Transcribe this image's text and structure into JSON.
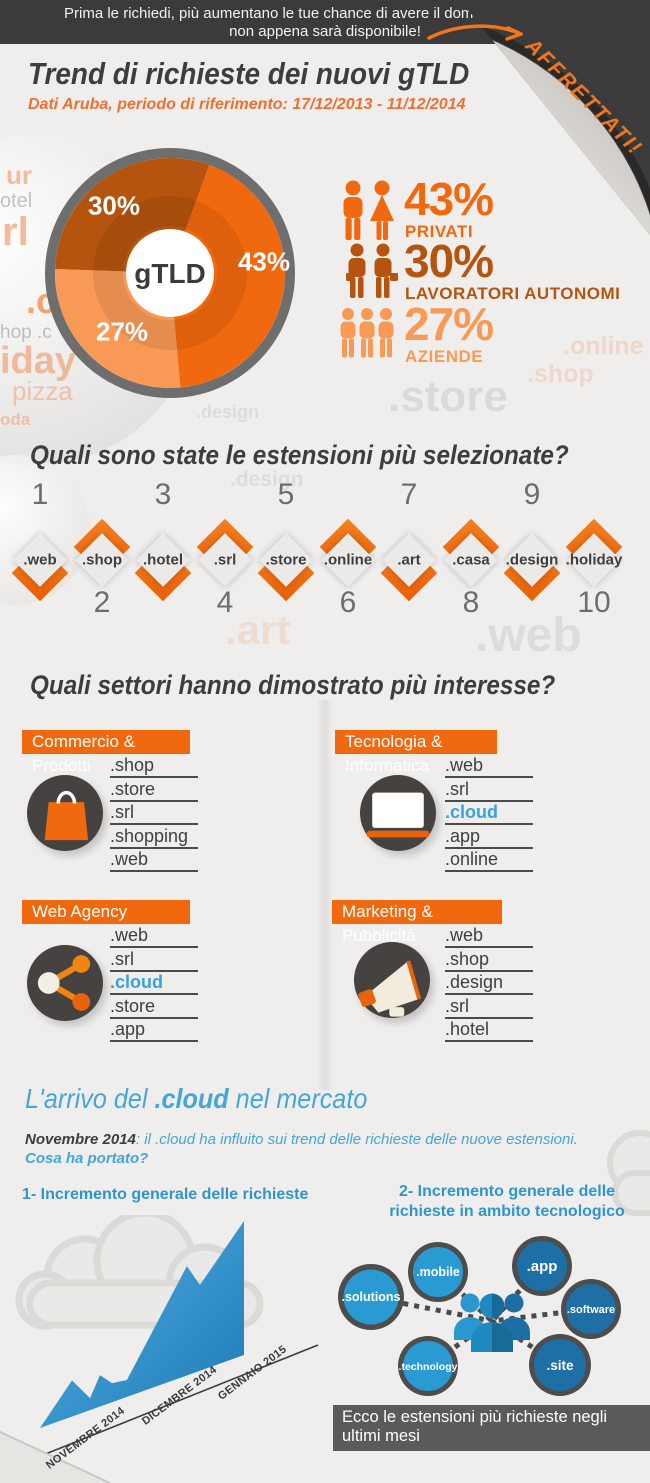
{
  "banner": {
    "line1": "Prima le richiedi, più aumentano le tue chance di avere il dominio che desideri,",
    "line2": "non appena sarà disponibile!",
    "ribbon": "AFFRETTATI!"
  },
  "header": {
    "title": "Trend di richieste dei nuovi gTLD",
    "subtitle": "Dati Aruba, periodo di riferimento: 17/12/2013 - 11/12/2014"
  },
  "audience": {
    "rows": [
      {
        "value": "43%",
        "label": "PRIVATI",
        "color": "#f1690e"
      },
      {
        "value": "30%",
        "label": "LAVORATORI AUTONOMI",
        "color": "#b5540e"
      },
      {
        "value": "27%",
        "label": "AZIENDE",
        "color": "#f89a55"
      }
    ]
  },
  "extensions_section": {
    "title": "Quali sono state le estensioni più selezionate?",
    "items": [
      {
        "rank": "1",
        "ext": ".web"
      },
      {
        "rank": "2",
        "ext": ".shop"
      },
      {
        "rank": "3",
        "ext": ".hotel"
      },
      {
        "rank": "4",
        "ext": ".srl"
      },
      {
        "rank": "5",
        "ext": ".store"
      },
      {
        "rank": "6",
        "ext": ".online"
      },
      {
        "rank": "7",
        "ext": ".art"
      },
      {
        "rank": "8",
        "ext": ".casa"
      },
      {
        "rank": "9",
        "ext": ".design"
      },
      {
        "rank": "10",
        "ext": ".holiday"
      }
    ]
  },
  "sectors_section": {
    "title": "Quali settori hanno dimostrato più interesse?",
    "cards": [
      {
        "title": "Commercio & Prodotti",
        "icon": "shopping-bag-icon",
        "items": [
          ".shop",
          ".store",
          ".srl",
          ".shopping",
          ".web"
        ]
      },
      {
        "title": "Tecnologia & Informatica",
        "icon": "laptop-icon",
        "items": [
          ".web",
          ".srl",
          ".cloud",
          ".app",
          ".online"
        ]
      },
      {
        "title": "Web Agency",
        "icon": "share-icon",
        "items": [
          ".web",
          ".srl",
          ".cloud",
          ".store",
          ".app"
        ]
      },
      {
        "title": "Marketing & Pubblicità",
        "icon": "megaphone-icon",
        "items": [
          ".web",
          ".shop",
          ".design",
          ".srl",
          ".hotel"
        ]
      }
    ]
  },
  "cloud_section": {
    "title_pre": "L'arrivo del ",
    "title_cloud": ".cloud",
    "title_post": " nel mercato",
    "intro_bold": "Novembre 2014",
    "intro_rest": ": il .cloud ha influito sui trend delle richieste delle nuove estensioni.",
    "intro_question": "Cosa ha portato?",
    "point1": "1- Incremento generale delle richieste",
    "point2_line1": "2- Incremento generale delle",
    "point2_line2": "richieste in ambito tecnologico"
  },
  "bubbles": {
    "items": [
      ".solutions",
      ".mobile",
      ".app",
      ".software",
      ".site",
      ".technology"
    ],
    "caption": "Ecco le estensioni più richieste negli ultimi mesi"
  },
  "watermarks": {
    "w1": "ur",
    "w2": "otel",
    "w3": "rl",
    "w4": ".ca",
    "w5": "hop .c",
    "w6": "iday",
    "w7": "pizza",
    "w8": "oda",
    "w9": ".hotel",
    "w10": ".store",
    "w11": ".online",
    "w12": ".shop",
    "w13": ".design",
    "w14": ".art",
    "w15": ".web",
    "w16": ".design"
  },
  "chart_data": [
    {
      "type": "pie",
      "title": "Trend di richieste dei nuovi gTLD",
      "center_label": "gTLD",
      "start_angle_deg": 70,
      "direction": "clockwise",
      "slices": [
        {
          "label": "Privati",
          "pct": 43,
          "color": "#f1690e",
          "display": "43%"
        },
        {
          "label": "Aziende",
          "pct": 27,
          "color": "#f89a55",
          "display": "27%"
        },
        {
          "label": "Lavoratori autonomi",
          "pct": 30,
          "color": "#b5540e",
          "display": "30%"
        }
      ]
    },
    {
      "type": "area",
      "title": "1- Incremento generale delle richieste",
      "x_ticks": [
        "NOVEMBRE 2014",
        "DICEMBRE 2014",
        "GENNAIO 2015"
      ],
      "points": [
        [
          0,
          0
        ],
        [
          0.157,
          0.27
        ],
        [
          0.245,
          0.09
        ],
        [
          0.294,
          0.235
        ],
        [
          0.353,
          0.143
        ],
        [
          0.426,
          0.126
        ],
        [
          0.72,
          0.816
        ],
        [
          0.784,
          0.64
        ],
        [
          1,
          1
        ]
      ],
      "color_top": "#56b2e3",
      "color_bottom": "#1c78b5"
    }
  ]
}
